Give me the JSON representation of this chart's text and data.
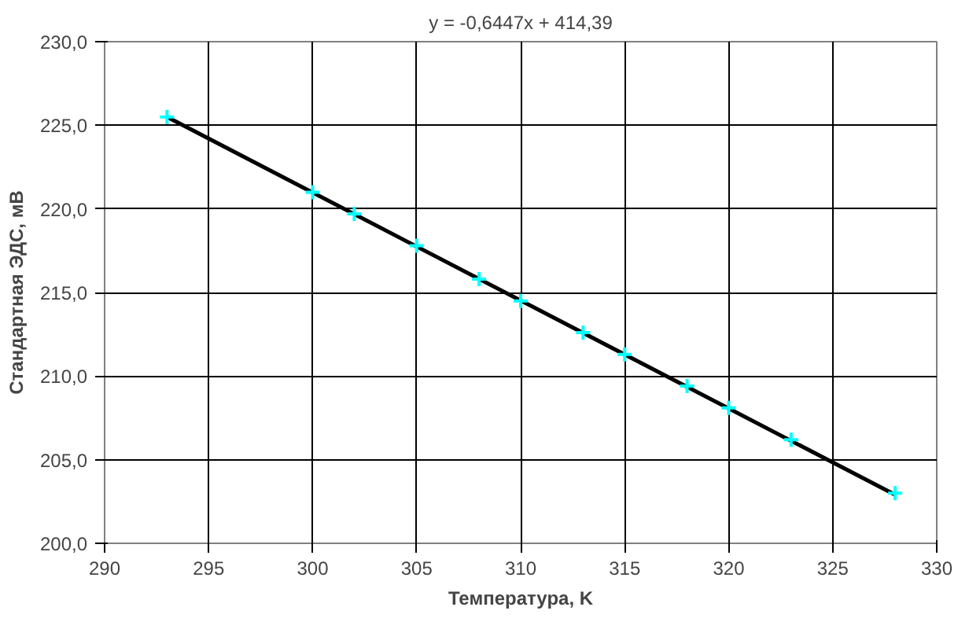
{
  "chart_data": {
    "type": "scatter",
    "xlabel": "Температура, K",
    "ylabel": "Стандартная ЭДС, мВ",
    "annotations": [
      "y = -0,6447x + 414,39"
    ],
    "series": [
      {
        "color": "#00ffff",
        "marker": "cross",
        "x": [
          293,
          300,
          302,
          305,
          308,
          310,
          313,
          315,
          318,
          320,
          323,
          328
        ],
        "values": [
          225.5,
          221.0,
          219.7,
          217.8,
          215.8,
          214.5,
          212.6,
          211.3,
          209.4,
          208.1,
          206.2,
          203.0
        ]
      },
      {
        "type": "line",
        "color": "#000000",
        "line_style": "solid",
        "x": [
          293,
          328
        ],
        "values": [
          225.5,
          202.9
        ]
      }
    ],
    "xlim": [
      290,
      330
    ],
    "xticks": [
      290,
      295,
      300,
      305,
      310,
      315,
      320,
      325,
      330
    ],
    "ylim": [
      200,
      230
    ],
    "yticks": [
      {
        "value": 200,
        "label": "200,0"
      },
      {
        "value": 205,
        "label": "205,0"
      },
      {
        "value": 210,
        "label": "210,0"
      },
      {
        "value": 215,
        "label": "215,0"
      },
      {
        "value": 220,
        "label": "220,0"
      },
      {
        "value": 225,
        "label": "225,0"
      },
      {
        "value": 230,
        "label": "230,0"
      }
    ],
    "grid": true
  }
}
